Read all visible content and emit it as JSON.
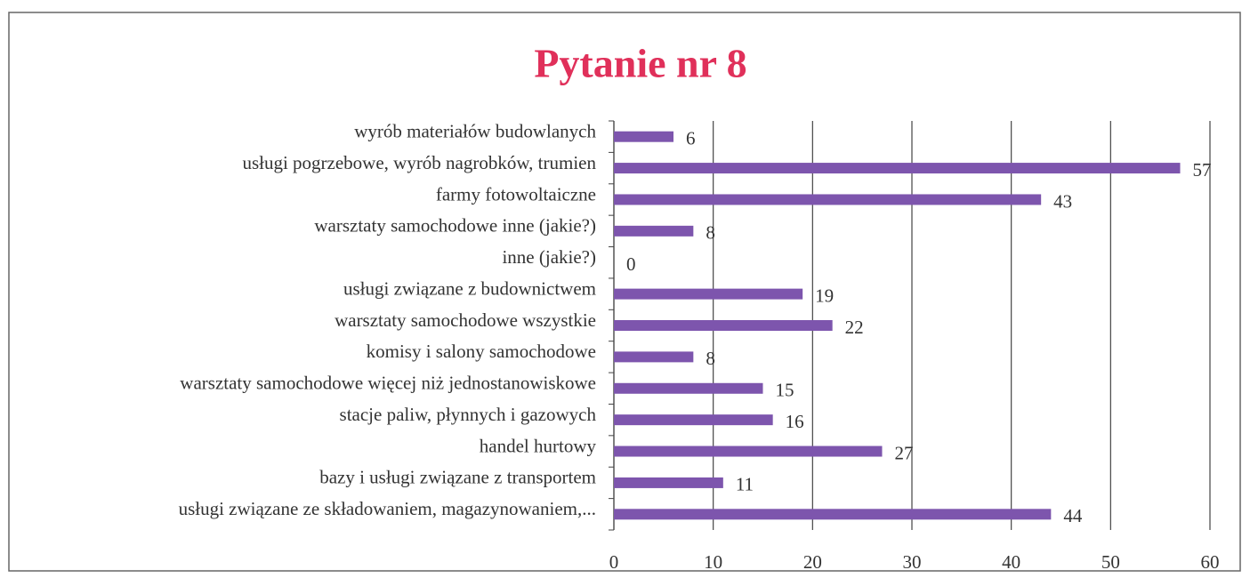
{
  "chart_data": {
    "type": "barh",
    "title": "Pytanie nr 8",
    "categories": [
      "wyrób materiałów budowlanych",
      "usługi pogrzebowe, wyrób nagrobków, trumien",
      "farmy fotowoltaiczne",
      "warsztaty samochodowe inne (jakie?)",
      "inne (jakie?)",
      "usługi związane z budownictwem",
      "warsztaty samochodowe wszystkie",
      "komisy i salony samochodowe",
      "warsztaty samochodowe więcej niż jednostanowiskowe",
      "stacje paliw, płynnych i gazowych",
      "handel hurtowy",
      "bazy i usługi związane z transportem",
      "usługi związane ze składowaniem, magazynowaniem,..."
    ],
    "values": [
      6,
      57,
      43,
      8,
      0,
      19,
      22,
      8,
      15,
      16,
      27,
      11,
      44
    ],
    "color": "#7d55ad",
    "xlim": [
      0,
      60
    ],
    "xticks": [
      0,
      10,
      20,
      30,
      40,
      50,
      60
    ],
    "grid": true
  }
}
